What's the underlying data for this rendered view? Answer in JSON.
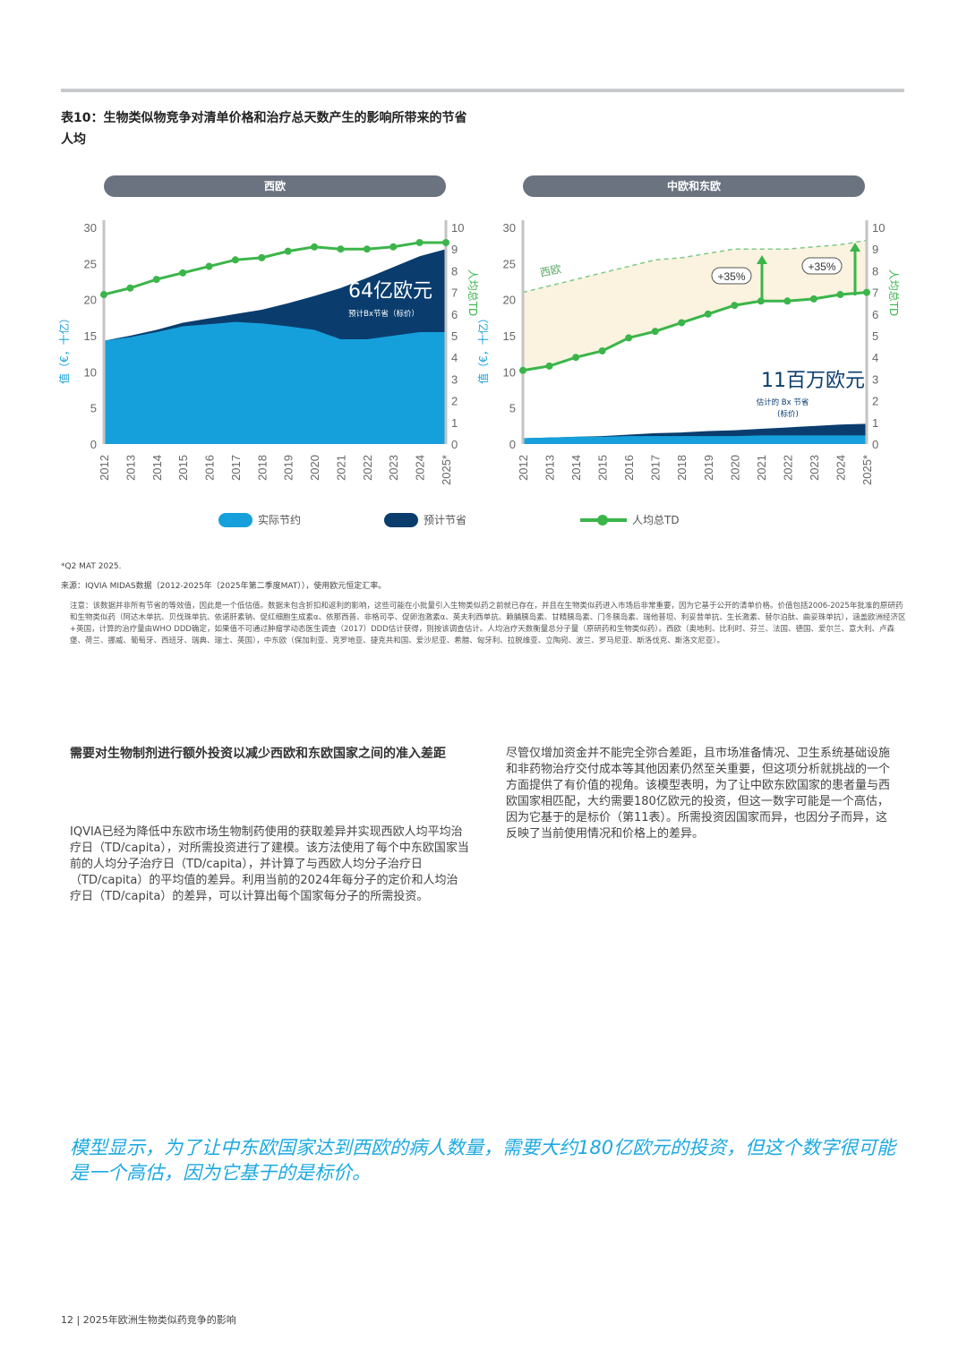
{
  "table_title": "表10：生物类似物竞争对清单价格和治疗总天数产生的影响所带来的节省",
  "table_subtitle": "人均",
  "colors": {
    "actual": "#16a0db",
    "forecast": "#0a3d6e",
    "td_line": "#3bb54a",
    "pill": "#6b7280",
    "west_band": "#fbf3df",
    "quote": "#1ca9e1"
  },
  "left_panel": {
    "header": "西欧",
    "savings_value": "64亿欧元",
    "savings_note": "预计Bx节省（标价）"
  },
  "right_panel": {
    "header": "中欧和东欧",
    "savings_value": "11百万欧元",
    "savings_note_1": "估计的 Bx 节省",
    "savings_note_2": "(标价)",
    "west_label": "西欧",
    "pct_1": "+35%",
    "pct_2": "+35%"
  },
  "axis": {
    "left_label": "值（€，十亿）",
    "right_label": "人均总TD"
  },
  "chart_data": [
    {
      "type": "area",
      "title": "西欧",
      "categories": [
        "2012",
        "2013",
        "2014",
        "2015",
        "2016",
        "2017",
        "2018",
        "2019",
        "2020",
        "2021",
        "2022",
        "2023",
        "2024",
        "2025*"
      ],
      "ylabel": "值（€，十亿）",
      "y2label": "人均总TD",
      "ylim": [
        0,
        30
      ],
      "y2lim": [
        0,
        10
      ],
      "yticks": [
        "0",
        "5",
        "10",
        "15",
        "20",
        "25",
        "30"
      ],
      "y2ticks": [
        "0",
        "1",
        "2",
        "3",
        "4",
        "5",
        "6",
        "7",
        "8",
        "9",
        "10"
      ],
      "series": [
        {
          "name": "实际节约",
          "values": [
            14.3,
            14.8,
            15.5,
            16.3,
            16.6,
            16.9,
            16.7,
            16.3,
            15.8,
            14.5,
            14.5,
            15.0,
            15.5,
            15.5
          ]
        },
        {
          "name": "预计节省",
          "values": [
            14.3,
            15.0,
            15.8,
            16.8,
            17.4,
            18.0,
            18.6,
            19.5,
            20.5,
            21.6,
            23.0,
            24.5,
            26.0,
            27.0
          ]
        },
        {
          "name": "人均总TD",
          "axis": "y2",
          "values": [
            6.9,
            7.2,
            7.6,
            7.9,
            8.2,
            8.5,
            8.6,
            8.9,
            9.1,
            9.0,
            9.0,
            9.1,
            9.3,
            9.3
          ]
        }
      ]
    },
    {
      "type": "area",
      "title": "中欧和东欧",
      "categories": [
        "2012",
        "2013",
        "2014",
        "2015",
        "2016",
        "2017",
        "2018",
        "2019",
        "2020",
        "2021",
        "2022",
        "2023",
        "2024",
        "2025*"
      ],
      "ylabel": "值（€，十亿）",
      "y2label": "人均总TD",
      "ylim": [
        0,
        30
      ],
      "y2lim": [
        0,
        10
      ],
      "yticks": [
        "0",
        "5",
        "10",
        "15",
        "20",
        "25",
        "30"
      ],
      "y2ticks": [
        "0",
        "1",
        "2",
        "3",
        "4",
        "5",
        "6",
        "7",
        "8",
        "9",
        "10"
      ],
      "series": [
        {
          "name": "实际节约",
          "values": [
            0.8,
            0.9,
            1.0,
            1.0,
            1.1,
            1.1,
            1.1,
            1.1,
            1.1,
            1.2,
            1.2,
            1.2,
            1.2,
            1.2
          ]
        },
        {
          "name": "预计节省",
          "values": [
            0.8,
            0.9,
            1.0,
            1.1,
            1.3,
            1.5,
            1.6,
            1.8,
            1.9,
            2.1,
            2.3,
            2.5,
            2.7,
            2.8
          ]
        },
        {
          "name": "人均总TD",
          "axis": "y2",
          "values": [
            3.4,
            3.6,
            4.0,
            4.3,
            4.9,
            5.2,
            5.6,
            6.0,
            6.4,
            6.6,
            6.6,
            6.7,
            6.9,
            7.0
          ]
        },
        {
          "name": "西欧",
          "axis": "y2",
          "values": [
            7.0,
            7.3,
            7.6,
            7.9,
            8.2,
            8.5,
            8.6,
            8.8,
            9.0,
            9.0,
            9.0,
            9.1,
            9.2,
            9.4
          ]
        }
      ]
    }
  ],
  "legend": {
    "actual": "实际节约",
    "forecast": "预计节省",
    "td": "人均总TD"
  },
  "footnote_1": "*Q2 MAT 2025.",
  "source": "来源：IQVIA MIDAS数据（2012-2025年（2025年第二季度MAT）），使用欧元恒定汇率。",
  "note": "注意：该数据并非所有节省的等效值，因此是一个低估值。数据未包含折扣和返利的影响，这些可能在小批量引入生物类似药之前就已存在，并且在生物类似药进入市场后非常重要，因为它基于公开的清单价格。价值包括2006-2025年批准的原研药和生物类似药（阿达木单抗、贝伐珠单抗、依诺肝素钠、促红细胞生成素α、依那西普、非格司亭、促卵泡激素α、英夫利西单抗、赖脯胰岛素、甘精胰岛素、门冬胰岛素、瑞他普坦、利妥昔单抗、生长激素、替尔泊肽、曲妥珠单抗），涵盖欧洲经济区+英国，计算的治疗量由WHO DDD确定，如果值不可通过肿瘤学动态医生调查（2017）DDD估计获得，则按该调查估计。人均治疗天数衡量总分子量（原研药和生物类似药）。西欧（奥地利、比利时、芬兰、法国、德国、爱尔兰、意大利、卢森堡、荷兰、挪威、葡萄牙、西班牙、瑞典、瑞士、英国），中东欧（保加利亚、克罗地亚、捷克共和国、爱沙尼亚、希腊、匈牙利、拉脱维亚、立陶宛、波兰、罗马尼亚、斯洛伐克、斯洛文尼亚）。",
  "section_heading": "需要对生物制剂进行额外投资以减少西欧和东欧国家之间的准入差距",
  "left_paragraph": "IQVIA已经为降低中东欧市场生物制药使用的获取差异并实现西欧人均平均治疗日（TD/capita），对所需投资进行了建模。该方法使用了每个中东欧国家当前的人均分子治疗日（TD/capita），并计算了与西欧人均分子治疗日（TD/capita）的平均值的差异。利用当前的2024年每分子的定价和人均治疗日（TD/capita）的差异，可以计算出每个国家每分子的所需投资。",
  "right_paragraph": "尽管仅增加资金并不能完全弥合差距，且市场准备情况、卫生系统基础设施和非药物治疗交付成本等其他因素仍然至关重要，但这项分析就挑战的一个方面提供了有价值的视角。该模型表明，为了让中欧东欧国家的患者量与西欧国家相匹配，大约需要180亿欧元的投资，但这一数字可能是一个高估，因为它基于的是标价（第11表）。所需投资因国家而异，也因分子而异，这反映了当前使用情况和价格上的差异。",
  "pull_quote": "模型显示，为了让中东欧国家达到西欧的病人数量，需要大约180亿欧元的投资，但这个数字很可能是一个高估，因为它基于的是标价。",
  "footer": "12 | 2025年欧洲生物类似药竞争的影响"
}
